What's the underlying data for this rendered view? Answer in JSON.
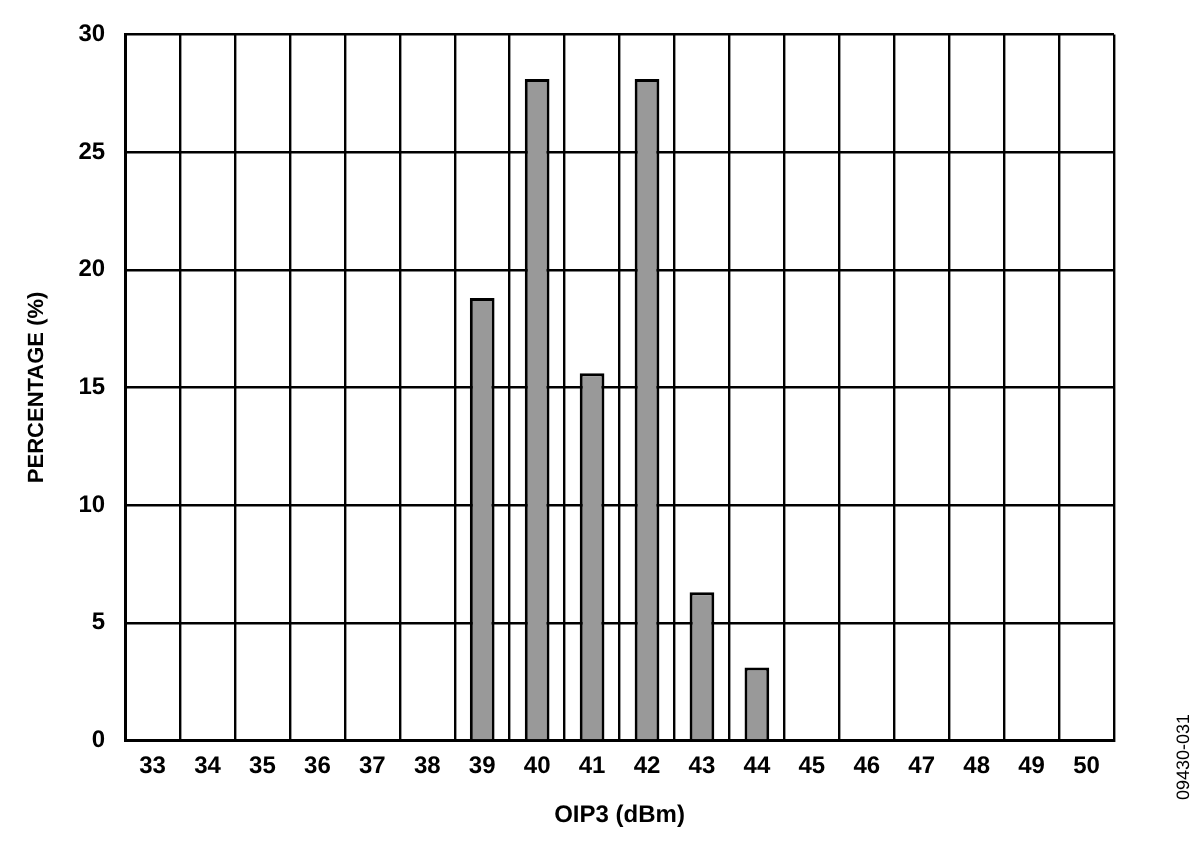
{
  "chart_data": {
    "type": "bar",
    "xlabel": "OIP3 (dBm)",
    "ylabel": "PERCENTAGE (%)",
    "categories": [
      "33",
      "34",
      "35",
      "36",
      "37",
      "38",
      "39",
      "40",
      "41",
      "42",
      "43",
      "44",
      "45",
      "46",
      "47",
      "48",
      "49",
      "50"
    ],
    "values": [
      0,
      0,
      0,
      0,
      0,
      0,
      18.8,
      28.1,
      15.6,
      28.1,
      6.3,
      3.1,
      0,
      0,
      0,
      0,
      0,
      0
    ],
    "color": "#999999",
    "ylim": [
      0,
      30
    ],
    "yticks": [
      0,
      5,
      10,
      15,
      20,
      25,
      30
    ],
    "grid": true,
    "legend": false,
    "annotations": [
      "09430-031"
    ]
  }
}
